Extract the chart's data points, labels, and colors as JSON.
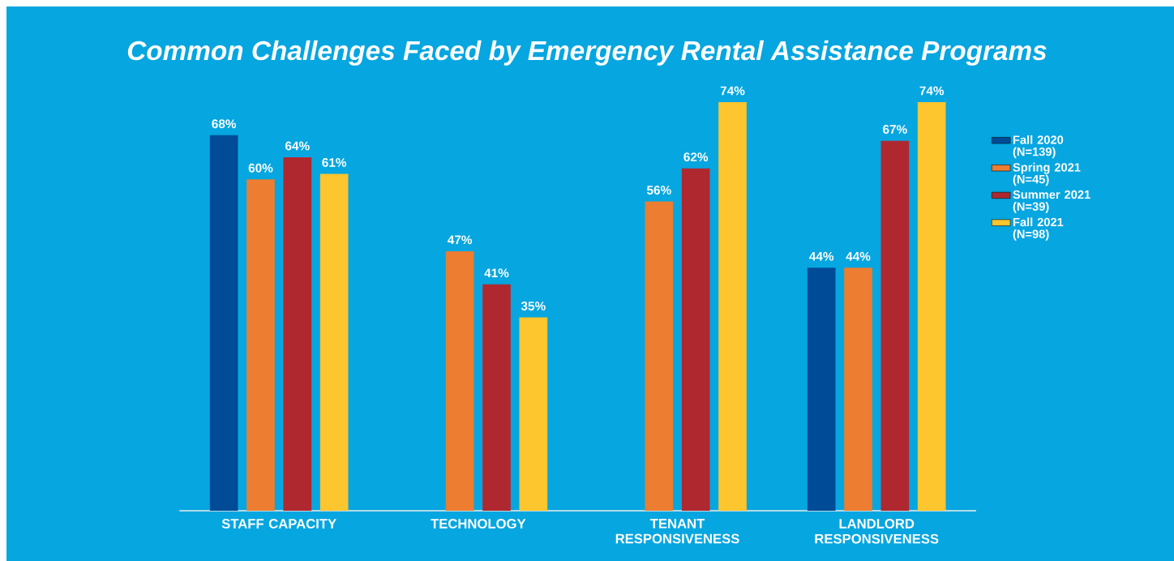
{
  "chart_data": {
    "type": "bar",
    "title": "Common Challenges Faced by Emergency Rental Assistance Programs",
    "categories": [
      "STAFF CAPACITY",
      "TECHNOLOGY",
      "TENANT RESPONSIVENESS",
      "LANDLORD RESPONSIVENESS"
    ],
    "series": [
      {
        "name": "Fall 2020 (N=139)",
        "color": "#004b97",
        "values": [
          68,
          null,
          null,
          44
        ],
        "value_labels": [
          "68%",
          null,
          null,
          "44%"
        ]
      },
      {
        "name": "Spring 2021 (N=45)",
        "color": "#ec7d31",
        "values": [
          60,
          47,
          56,
          44
        ],
        "value_labels": [
          "60%",
          "47%",
          "56%",
          "44%"
        ]
      },
      {
        "name": "Summer 2021 (N=39)",
        "color": "#b0282f",
        "values": [
          64,
          41,
          62,
          67
        ],
        "value_labels": [
          "64%",
          "41%",
          "62%",
          "67%"
        ]
      },
      {
        "name": "Fall 2021 (N=98)",
        "color": "#fdc52e",
        "values": [
          61,
          35,
          74,
          74
        ],
        "value_labels": [
          "61%",
          "35%",
          "74%",
          "74%"
        ]
      }
    ],
    "legend": "right"
  }
}
